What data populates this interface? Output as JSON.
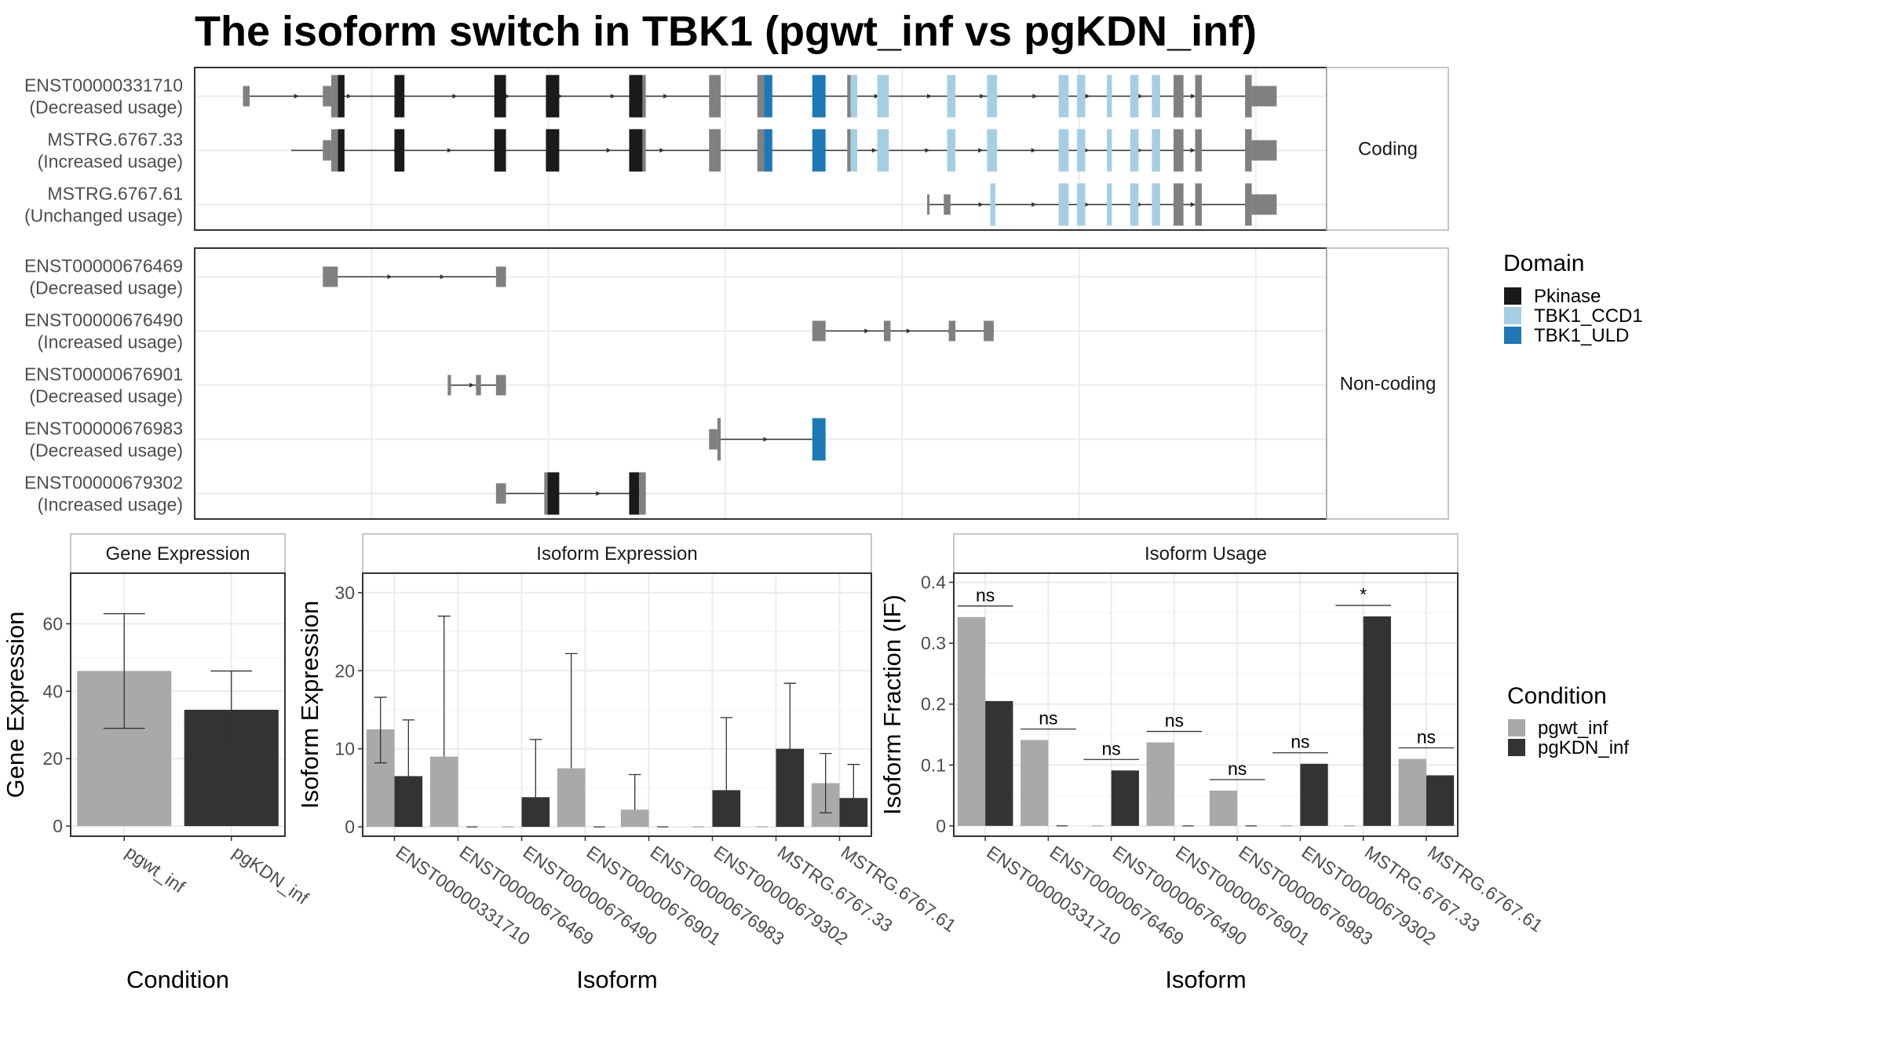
{
  "title": "The isoform switch in TBK1 (pgwt_inf vs pgKDN_inf)",
  "structure": {
    "xlim": [
      0,
      680
    ],
    "colors": {
      "exon": "#808080",
      "Pkinase": "#1a1a1a",
      "TBK1_CCD1": "#a6cee3",
      "TBK1_ULD": "#1f78b4",
      "line": "#333333"
    },
    "facets": [
      {
        "strip": "Coding",
        "isoforms": [
          {
            "name": "ENST00000331710",
            "usage": "(Decreased usage)",
            "line": [
              30,
              632
            ],
            "exons": [
              {
                "s": 29,
                "e": 33,
                "t": "exon",
                "tall": false
              },
              {
                "s": 77,
                "e": 82,
                "t": "exon",
                "tall": false
              },
              {
                "s": 82,
                "e": 86,
                "t": "exon",
                "tall": true
              },
              {
                "s": 86,
                "e": 90,
                "t": "Pkinase",
                "tall": true
              },
              {
                "s": 120,
                "e": 126,
                "t": "Pkinase",
                "tall": true
              },
              {
                "s": 180,
                "e": 187,
                "t": "Pkinase",
                "tall": true
              },
              {
                "s": 211,
                "e": 219,
                "t": "Pkinase",
                "tall": true
              },
              {
                "s": 261,
                "e": 269,
                "t": "Pkinase",
                "tall": true
              },
              {
                "s": 269,
                "e": 271,
                "t": "exon",
                "tall": true
              },
              {
                "s": 309,
                "e": 316,
                "t": "exon",
                "tall": true
              },
              {
                "s": 338,
                "e": 342,
                "t": "exon",
                "tall": true
              },
              {
                "s": 342,
                "e": 347,
                "t": "TBK1_ULD",
                "tall": true
              },
              {
                "s": 371,
                "e": 379,
                "t": "TBK1_ULD",
                "tall": true
              },
              {
                "s": 392,
                "e": 394,
                "t": "exon",
                "tall": true
              },
              {
                "s": 394,
                "e": 398,
                "t": "TBK1_CCD1",
                "tall": true
              },
              {
                "s": 410,
                "e": 417,
                "t": "TBK1_CCD1",
                "tall": true
              },
              {
                "s": 452,
                "e": 457,
                "t": "TBK1_CCD1",
                "tall": true
              },
              {
                "s": 476,
                "e": 482,
                "t": "TBK1_CCD1",
                "tall": true
              },
              {
                "s": 519,
                "e": 525,
                "t": "TBK1_CCD1",
                "tall": true
              },
              {
                "s": 530,
                "e": 535,
                "t": "TBK1_CCD1",
                "tall": true
              },
              {
                "s": 548,
                "e": 551,
                "t": "TBK1_CCD1",
                "tall": true
              },
              {
                "s": 562,
                "e": 567,
                "t": "TBK1_CCD1",
                "tall": true
              },
              {
                "s": 575,
                "e": 580,
                "t": "TBK1_CCD1",
                "tall": true
              },
              {
                "s": 588,
                "e": 594,
                "t": "exon",
                "tall": true
              },
              {
                "s": 601,
                "e": 605,
                "t": "exon",
                "tall": true
              },
              {
                "s": 631,
                "e": 635,
                "t": "exon",
                "tall": true
              },
              {
                "s": 635,
                "e": 650,
                "t": "exon",
                "tall": false
              }
            ]
          },
          {
            "name": "MSTRG.6767.33",
            "usage": "(Increased usage)",
            "line": [
              58,
              632
            ],
            "exons": [
              {
                "s": 77,
                "e": 82,
                "t": "exon",
                "tall": false
              },
              {
                "s": 82,
                "e": 86,
                "t": "exon",
                "tall": true
              },
              {
                "s": 86,
                "e": 90,
                "t": "Pkinase",
                "tall": true
              },
              {
                "s": 120,
                "e": 126,
                "t": "Pkinase",
                "tall": true
              },
              {
                "s": 180,
                "e": 187,
                "t": "Pkinase",
                "tall": true
              },
              {
                "s": 211,
                "e": 219,
                "t": "Pkinase",
                "tall": true
              },
              {
                "s": 261,
                "e": 269,
                "t": "Pkinase",
                "tall": true
              },
              {
                "s": 269,
                "e": 271,
                "t": "exon",
                "tall": true
              },
              {
                "s": 309,
                "e": 316,
                "t": "exon",
                "tall": true
              },
              {
                "s": 338,
                "e": 342,
                "t": "exon",
                "tall": true
              },
              {
                "s": 342,
                "e": 347,
                "t": "TBK1_ULD",
                "tall": true
              },
              {
                "s": 371,
                "e": 379,
                "t": "TBK1_ULD",
                "tall": true
              },
              {
                "s": 392,
                "e": 394,
                "t": "exon",
                "tall": true
              },
              {
                "s": 394,
                "e": 398,
                "t": "TBK1_CCD1",
                "tall": true
              },
              {
                "s": 410,
                "e": 417,
                "t": "TBK1_CCD1",
                "tall": true
              },
              {
                "s": 452,
                "e": 457,
                "t": "TBK1_CCD1",
                "tall": true
              },
              {
                "s": 476,
                "e": 482,
                "t": "TBK1_CCD1",
                "tall": true
              },
              {
                "s": 519,
                "e": 525,
                "t": "TBK1_CCD1",
                "tall": true
              },
              {
                "s": 530,
                "e": 535,
                "t": "TBK1_CCD1",
                "tall": true
              },
              {
                "s": 548,
                "e": 551,
                "t": "TBK1_CCD1",
                "tall": true
              },
              {
                "s": 562,
                "e": 567,
                "t": "TBK1_CCD1",
                "tall": true
              },
              {
                "s": 575,
                "e": 580,
                "t": "TBK1_CCD1",
                "tall": true
              },
              {
                "s": 588,
                "e": 594,
                "t": "exon",
                "tall": true
              },
              {
                "s": 601,
                "e": 605,
                "t": "exon",
                "tall": true
              },
              {
                "s": 631,
                "e": 635,
                "t": "exon",
                "tall": true
              },
              {
                "s": 635,
                "e": 650,
                "t": "exon",
                "tall": false
              }
            ]
          },
          {
            "name": "MSTRG.6767.61",
            "usage": "(Unchanged usage)",
            "line": [
              441,
              632
            ],
            "exons": [
              {
                "s": 440,
                "e": 441,
                "t": "exon",
                "tall": false
              },
              {
                "s": 450,
                "e": 454,
                "t": "exon",
                "tall": false
              },
              {
                "s": 478,
                "e": 481,
                "t": "TBK1_CCD1",
                "tall": true
              },
              {
                "s": 519,
                "e": 525,
                "t": "TBK1_CCD1",
                "tall": true
              },
              {
                "s": 530,
                "e": 535,
                "t": "TBK1_CCD1",
                "tall": true
              },
              {
                "s": 548,
                "e": 551,
                "t": "TBK1_CCD1",
                "tall": true
              },
              {
                "s": 562,
                "e": 567,
                "t": "TBK1_CCD1",
                "tall": true
              },
              {
                "s": 575,
                "e": 580,
                "t": "TBK1_CCD1",
                "tall": true
              },
              {
                "s": 588,
                "e": 594,
                "t": "exon",
                "tall": true
              },
              {
                "s": 601,
                "e": 605,
                "t": "exon",
                "tall": true
              },
              {
                "s": 631,
                "e": 635,
                "t": "exon",
                "tall": true
              },
              {
                "s": 635,
                "e": 650,
                "t": "exon",
                "tall": false
              }
            ]
          }
        ]
      },
      {
        "strip": "Non-coding",
        "isoforms": [
          {
            "name": "ENST00000676469",
            "usage": "(Decreased usage)",
            "line": [
              86,
              181
            ],
            "exons": [
              {
                "s": 77,
                "e": 86,
                "t": "exon",
                "tall": false
              },
              {
                "s": 181,
                "e": 187,
                "t": "exon",
                "tall": false
              }
            ]
          },
          {
            "name": "ENST00000676490",
            "usage": "(Increased usage)",
            "line": [
              379,
              480
            ],
            "exons": [
              {
                "s": 371,
                "e": 379,
                "t": "exon",
                "tall": false
              },
              {
                "s": 414,
                "e": 418,
                "t": "exon",
                "tall": false
              },
              {
                "s": 453,
                "e": 457,
                "t": "exon",
                "tall": false
              },
              {
                "s": 474,
                "e": 480,
                "t": "exon",
                "tall": false
              }
            ]
          },
          {
            "name": "ENST00000676901",
            "usage": "(Decreased usage)",
            "line": [
              153,
              181
            ],
            "exons": [
              {
                "s": 152,
                "e": 154,
                "t": "exon",
                "tall": false
              },
              {
                "s": 169,
                "e": 172,
                "t": "exon",
                "tall": false
              },
              {
                "s": 181,
                "e": 187,
                "t": "exon",
                "tall": false
              }
            ]
          },
          {
            "name": "ENST00000676983",
            "usage": "(Decreased usage)",
            "line": [
              316,
              371
            ],
            "exons": [
              {
                "s": 309,
                "e": 314,
                "t": "exon",
                "tall": false
              },
              {
                "s": 314,
                "e": 316,
                "t": "exon",
                "tall": true
              },
              {
                "s": 371,
                "e": 379,
                "t": "TBK1_ULD",
                "tall": true
              }
            ]
          },
          {
            "name": "ENST00000679302",
            "usage": "(Increased usage)",
            "line": [
              187,
              271
            ],
            "exons": [
              {
                "s": 181,
                "e": 187,
                "t": "exon",
                "tall": false
              },
              {
                "s": 210,
                "e": 212,
                "t": "exon",
                "tall": true
              },
              {
                "s": 212,
                "e": 219,
                "t": "Pkinase",
                "tall": true
              },
              {
                "s": 261,
                "e": 267,
                "t": "Pkinase",
                "tall": true
              },
              {
                "s": 267,
                "e": 271,
                "t": "exon",
                "tall": true
              }
            ]
          }
        ]
      }
    ]
  },
  "domain_legend": {
    "title": "Domain",
    "items": [
      {
        "label": "Pkinase",
        "color": "#1a1a1a"
      },
      {
        "label": "TBK1_CCD1",
        "color": "#a6cee3"
      },
      {
        "label": "TBK1_ULD",
        "color": "#1f78b4"
      }
    ]
  },
  "condition_legend": {
    "title": "Condition",
    "items": [
      {
        "label": "pgwt_inf",
        "color": "#a9a9a9"
      },
      {
        "label": "pgKDN_inf",
        "color": "#333333"
      }
    ]
  },
  "chart_data": [
    {
      "type": "bar",
      "panel": "Gene Expression",
      "xlabel": "Condition",
      "ylabel": "Gene Expression",
      "ylim": [
        -3,
        75
      ],
      "yticks": [
        0,
        20,
        40,
        60
      ],
      "categories": [
        "pgwt_inf",
        "pgKDN_inf"
      ],
      "values": [
        46,
        34.5
      ],
      "err_low": [
        29,
        23
      ],
      "err_high": [
        63,
        46
      ],
      "colors": [
        "#a9a9a9",
        "#333333"
      ]
    },
    {
      "type": "bar",
      "panel": "Isoform Expression",
      "xlabel": "Isoform",
      "ylabel": "Isoform Expression",
      "ylim": [
        -1.2,
        32.5
      ],
      "yticks": [
        0,
        10,
        20,
        30
      ],
      "categories": [
        "ENST00000331710",
        "ENST00000676469",
        "ENST00000676490",
        "ENST00000676901",
        "ENST00000676983",
        "ENST00000679302",
        "MSTRG.6767.33",
        "MSTRG.6767.61"
      ],
      "series": [
        {
          "name": "pgwt_inf",
          "values": [
            12.5,
            9.0,
            0,
            7.5,
            2.2,
            0,
            0,
            5.6
          ],
          "err_low": [
            8.2,
            null,
            null,
            null,
            null,
            null,
            null,
            1.8
          ],
          "err_high": [
            16.6,
            27.0,
            null,
            22.2,
            6.7,
            null,
            null,
            9.4
          ]
        },
        {
          "name": "pgKDN_inf",
          "values": [
            6.5,
            0,
            3.8,
            0,
            0,
            4.7,
            10.0,
            3.7
          ],
          "err_low": [
            null,
            null,
            null,
            null,
            null,
            null,
            1.8,
            null
          ],
          "err_high": [
            13.7,
            null,
            11.2,
            null,
            null,
            14.0,
            18.4,
            8.0
          ]
        }
      ]
    },
    {
      "type": "bar",
      "panel": "Isoform Usage",
      "xlabel": "Isoform",
      "ylabel": "Isoform Fraction (IF)",
      "ylim": [
        -0.017,
        0.415
      ],
      "yticks": [
        0.0,
        0.1,
        0.2,
        0.3,
        0.4
      ],
      "categories": [
        "ENST00000331710",
        "ENST00000676469",
        "ENST00000676490",
        "ENST00000676901",
        "ENST00000676983",
        "ENST00000679302",
        "MSTRG.6767.33",
        "MSTRG.6767.61"
      ],
      "series": [
        {
          "name": "pgwt_inf",
          "values": [
            0.343,
            0.141,
            0,
            0.137,
            0.058,
            0,
            0,
            0.11
          ]
        },
        {
          "name": "pgKDN_inf",
          "values": [
            0.205,
            0,
            0.091,
            0,
            0,
            0.102,
            0.344,
            0.083
          ]
        }
      ],
      "significance": [
        "ns",
        "ns",
        "ns",
        "ns",
        "ns",
        "ns",
        "*",
        "ns"
      ]
    }
  ]
}
